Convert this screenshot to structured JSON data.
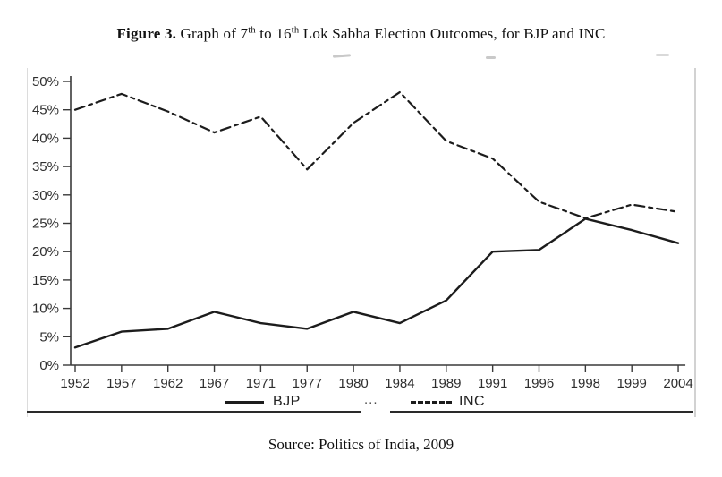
{
  "figure": {
    "title": {
      "bold": "Figure 3.",
      "t1": " Graph of 7",
      "sup1": "th",
      "t2": " to 16",
      "sup2": "th",
      "t3": " Lok Sabha Election Outcomes, for BJP and INC"
    },
    "source": "Source: Politics of India, 2009"
  },
  "legend": {
    "bjp_label": "BJP",
    "inc_label": "INC",
    "artifact": "..."
  },
  "colors": {
    "line": "#1c1c1c",
    "axis": "#3a3a3a",
    "tick_text": "#2e2e2e",
    "border": "#d2d2d2",
    "rule": "#2a2a2a"
  },
  "chart_data": {
    "type": "line",
    "title": "Graph of 7th to 16th Lok Sabha Election Outcomes, for BJP and INC",
    "categories": [
      1952,
      1957,
      1962,
      1967,
      1971,
      1977,
      1980,
      1984,
      1989,
      1991,
      1996,
      1998,
      1999,
      2004
    ],
    "series": [
      {
        "name": "BJP",
        "style": "solid",
        "values": [
          3.1,
          5.9,
          6.4,
          9.4,
          7.4,
          6.4,
          9.4,
          7.4,
          11.4,
          20.0,
          20.3,
          25.8,
          23.8,
          21.5
        ]
      },
      {
        "name": "INC",
        "style": "dashed",
        "values": [
          45.0,
          47.8,
          44.7,
          41.0,
          43.8,
          34.5,
          42.7,
          48.1,
          39.5,
          36.4,
          28.8,
          25.9,
          28.3,
          27.0
        ]
      }
    ],
    "xlabel": "",
    "ylabel": "",
    "ylim": [
      0,
      50
    ],
    "ytick_step": 5,
    "ytick_format": "percent",
    "grid": false,
    "legend_position": "bottom"
  }
}
